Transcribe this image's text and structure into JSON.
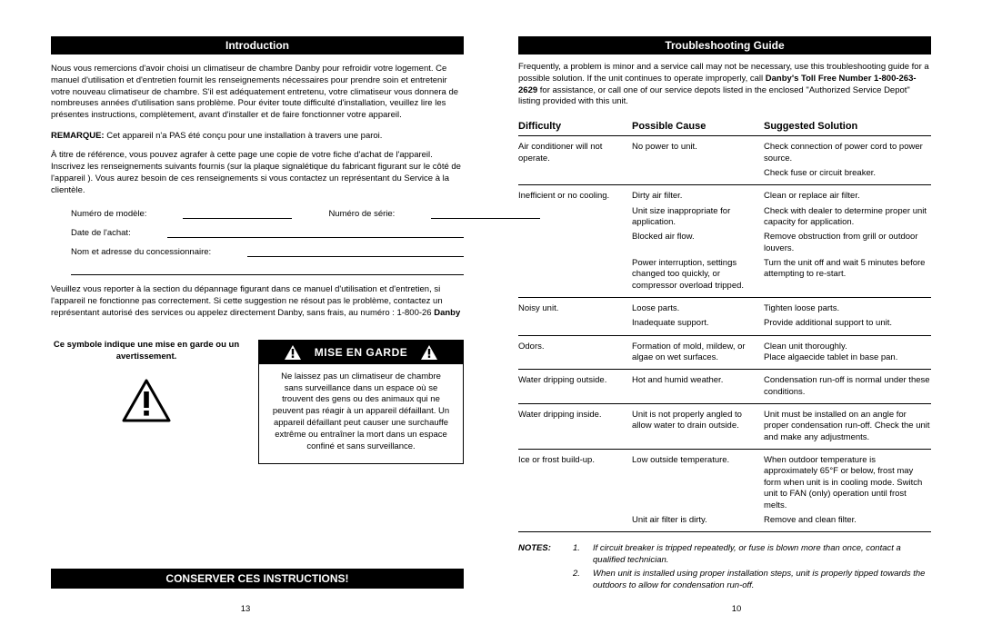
{
  "left": {
    "introduction_header": "Introduction",
    "intro_para": "Nous vous remercions d'avoir choisi un climatiseur de chambre Danby pour refroidir votre logement. Ce manuel d'utilisation et d'entretien fournit les renseignements nécessaires pour prendre soin et entretenir votre nouveau climatiseur de chambre. S'il est adéquatement entretenu, votre climatiseur vous donnera de nombreuses années d'utilisation sans problème. Pour éviter toute difficulté d'installation, veuillez lire les présentes instructions, complètement, avant d'installer et de faire fonctionner votre appareil.",
    "remarque_label": "REMARQUE:",
    "remarque_text": "Cet appareil n'a PAS été conçu pour une installation à travers une paroi.",
    "ref_intro": "À titre de référence, vous pouvez agrafer à cette page une copie de votre fiche d'achat de l'appareil. Inscrivez les renseignements suivants fournis (sur la plaque signalétique du fabricant figurant sur le côté de l'appareil ). Vous aurez besoin de ces renseignements si vous contactez un représentant du Service à la clientèle.",
    "labels": {
      "model": "Numéro de modèle:",
      "serial": "Numéro de série:",
      "date": "Date de l'achat:",
      "dealer": "Nom et adresse du concessionnaire:"
    },
    "lower_ref": "Veuillez vous reporter à la section du dépannage figurant dans ce manuel d'utilisation et d'entretien, si l'appareil ne fonctionne pas correctement. Si cette suggestion ne résout pas le problème, contactez un représentant autorisé des services ou appelez directement Danby, sans frais, au numéro : 1-800-26",
    "brand": "Danby",
    "warn_left": "Ce symbole indique une mise en garde ou un avertissement.",
    "warn_header": "MISE EN GARDE",
    "warn_body": "Ne laissez pas un climatiseur de chambre sans surveillance dans un espace où se trouvent des gens ou des animaux qui ne peuvent pas réagir à un appareil défaillant. Un appareil défaillant peut causer une surchauffe extrême ou entraîner la mort dans un espace confiné et sans surveillance.",
    "conserve": "CONSERVER CES INSTRUCTIONS!",
    "page_num": "13"
  },
  "right": {
    "troubleshooting_header": "Troubleshooting Guide",
    "ts_intro_a": "Frequently, a problem is minor and a service call may not be necessary, use this troubleshooting guide for a possible solution. If the unit continues to operate improperly, call ",
    "ts_intro_bold": "Danby's Toll Free Number 1-800-263-2629",
    "ts_intro_b": " for assistance, or call one of our service depots listed in the enclosed \"Authorized Service Depot\" listing provided with this unit.",
    "headers": {
      "difficulty": "Difficulty",
      "cause": "Possible Cause",
      "solution": "Suggested Solution"
    },
    "rows": [
      {
        "difficulty": "Air conditioner will not operate.",
        "subs": [
          {
            "cause": "No power to unit.",
            "solution": "Check connection of power cord to power source."
          },
          {
            "cause": "",
            "solution": "Check fuse or circuit breaker."
          }
        ]
      },
      {
        "difficulty": "Inefficient or no cooling.",
        "subs": [
          {
            "cause": "Dirty air filter.",
            "solution": "Clean or replace air filter."
          },
          {
            "cause": "Unit size inappropriate for application.",
            "solution": "Check with dealer to determine proper unit capacity for application."
          },
          {
            "cause": "Blocked air flow.",
            "solution": "Remove obstruction from grill or outdoor louvers."
          },
          {
            "cause": "Power interruption, settings changed too quickly, or compressor overload tripped.",
            "solution": "Turn the unit off and wait 5 minutes before attempting to re-start."
          }
        ]
      },
      {
        "difficulty": "Noisy unit.",
        "subs": [
          {
            "cause": "Loose parts.",
            "solution": "Tighten loose parts."
          },
          {
            "cause": "Inadequate support.",
            "solution": "Provide additional support to unit."
          }
        ]
      },
      {
        "difficulty": "Odors.",
        "subs": [
          {
            "cause": "Formation of mold, mildew, or algae on wet surfaces.",
            "solution": "Clean unit thoroughly.\nPlace algaecide tablet in base pan."
          }
        ]
      },
      {
        "difficulty": "Water dripping outside.",
        "subs": [
          {
            "cause": "Hot and humid weather.",
            "solution": "Condensation run-off is normal under these conditions."
          }
        ]
      },
      {
        "difficulty": "Water dripping inside.",
        "subs": [
          {
            "cause": "Unit is not properly angled to allow water to drain outside.",
            "solution": "Unit must be installed on an angle for proper condensation run-off. Check the unit and make any adjustments."
          }
        ]
      },
      {
        "difficulty": "Ice or frost build-up.",
        "subs": [
          {
            "cause": "Low outside temperature.",
            "solution": "When outdoor temperature is approximately 65°F or below, frost may form when unit is in cooling mode. Switch unit to FAN (only) operation until frost melts."
          },
          {
            "cause": "Unit air filter is dirty.",
            "solution": "Remove and clean filter."
          }
        ]
      }
    ],
    "notes_label": "NOTES:",
    "notes": [
      "If circuit breaker is tripped repeatedly, or fuse is blown more than once, contact a qualified technician.",
      "When unit is installed using proper installation steps, unit is properly tipped towards the outdoors to allow for condensation run-off."
    ],
    "page_num": "10"
  },
  "colors": {
    "black": "#000000",
    "white": "#ffffff"
  }
}
